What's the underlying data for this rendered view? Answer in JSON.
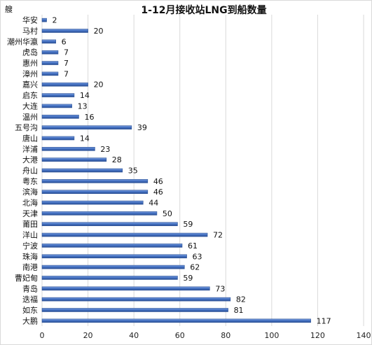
{
  "chart_data": {
    "type": "bar",
    "orientation": "horizontal",
    "title": "1-12月接收站LNG到船数量",
    "unit_label": "艘",
    "categories": [
      "华安",
      "马村",
      "潮州华瀛",
      "虎岛",
      "惠州",
      "漳州",
      "嘉兴",
      "启东",
      "大连",
      "温州",
      "五号沟",
      "唐山",
      "洋浦",
      "大港",
      "舟山",
      "粤东",
      "滨海",
      "北海",
      "天津",
      "莆田",
      "洋山",
      "宁波",
      "珠海",
      "南港",
      "曹妃甸",
      "青岛",
      "迭福",
      "如东",
      "大鹏"
    ],
    "values": [
      2,
      20,
      6,
      7,
      7,
      7,
      20,
      14,
      13,
      16,
      39,
      14,
      23,
      28,
      35,
      46,
      46,
      44,
      50,
      59,
      72,
      61,
      63,
      62,
      59,
      73,
      82,
      81,
      117
    ],
    "xlim": [
      0,
      140
    ],
    "xticks": [
      0,
      20,
      40,
      60,
      80,
      100,
      120,
      140
    ],
    "grid": true,
    "bar_color": "#4472c4",
    "legend": "none"
  }
}
